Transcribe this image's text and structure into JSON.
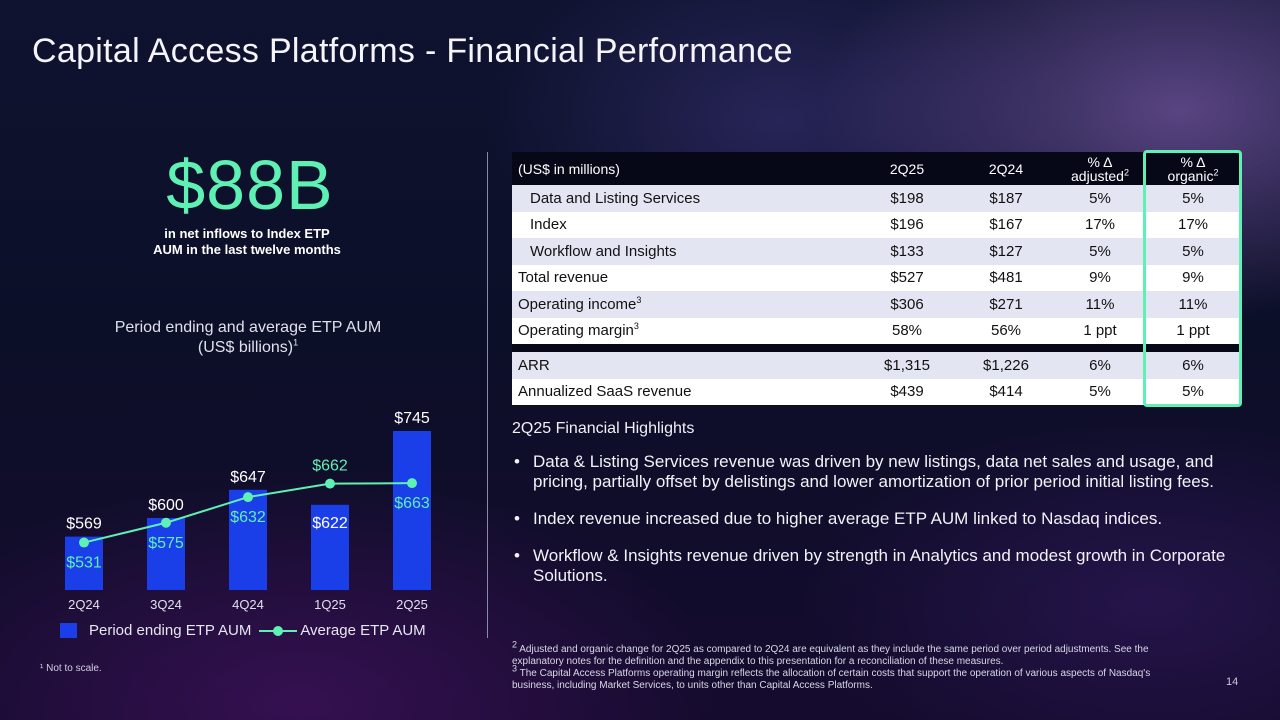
{
  "title": "Capital Access Platforms - Financial Performance",
  "headline": {
    "value": "$88B",
    "caption": "in net inflows to Index ETP AUM in the last twelve months"
  },
  "chart_title": {
    "line1": "Period ending and average ETP AUM",
    "line2": "(US$ billions)",
    "sup": "1"
  },
  "chart_data": {
    "type": "bar",
    "categories": [
      "2Q24",
      "3Q24",
      "4Q24",
      "1Q25",
      "2Q25"
    ],
    "series": [
      {
        "name": "Period ending ETP AUM",
        "type": "bar",
        "values": [
          569,
          600,
          647,
          622,
          745
        ],
        "labels": [
          "$569",
          "$600",
          "$647",
          "$622",
          "$745"
        ],
        "color": "#1a3ee8"
      },
      {
        "name": "Average ETP AUM",
        "type": "line",
        "values": [
          531,
          575,
          632,
          662,
          663
        ],
        "labels": [
          "$531",
          "$575",
          "$632",
          "$662",
          "$663"
        ],
        "color": "#5ff0b4"
      }
    ],
    "note": "Not to scale",
    "legend_position": "bottom"
  },
  "legend": {
    "bar": "Period ending ETP AUM",
    "line": "Average ETP AUM"
  },
  "footnote_left": "¹ Not to scale.",
  "table": {
    "header": {
      "label": "(US$ in millions)",
      "c1": "2Q25",
      "c2": "2Q24",
      "c3_line1": "% Δ",
      "c3_line2": "adjusted",
      "c3_sup": "2",
      "c4_line1": "% Δ",
      "c4_line2": "organic",
      "c4_sup": "2"
    },
    "rows": [
      {
        "label": "Data and Listing Services",
        "sup": "",
        "c1": "$198",
        "c2": "$187",
        "c3": "5%",
        "c4": "5%"
      },
      {
        "label": "Index",
        "sup": "",
        "c1": "$196",
        "c2": "$167",
        "c3": "17%",
        "c4": "17%"
      },
      {
        "label": "Workflow and Insights",
        "sup": "",
        "c1": "$133",
        "c2": "$127",
        "c3": "5%",
        "c4": "5%"
      },
      {
        "label": "Total revenue",
        "sup": "",
        "c1": "$527",
        "c2": "$481",
        "c3": "9%",
        "c4": "9%"
      },
      {
        "label": "Operating income",
        "sup": "3",
        "c1": "$306",
        "c2": "$271",
        "c3": "11%",
        "c4": "11%"
      },
      {
        "label": "Operating margin",
        "sup": "3",
        "c1": "58%",
        "c2": "56%",
        "c3": "1 ppt",
        "c4": "1 ppt"
      },
      {
        "label": "ARR",
        "sup": "",
        "c1": "$1,315",
        "c2": "$1,226",
        "c3": "6%",
        "c4": "6%"
      },
      {
        "label": "Annualized SaaS revenue",
        "sup": "",
        "c1": "$439",
        "c2": "$414",
        "c3": "5%",
        "c4": "5%"
      }
    ]
  },
  "highlights": {
    "title": "2Q25 Financial Highlights",
    "bullets": [
      "Data & Listing Services revenue was driven by new listings, data net sales and usage, and pricing, partially offset by delistings and lower amortization of prior period initial listing fees.",
      "Index revenue increased due to higher average ETP AUM linked to Nasdaq indices.",
      "Workflow & Insights revenue driven by strength in Analytics and modest growth in Corporate Solutions."
    ]
  },
  "footnotes": {
    "f2_sup": "2",
    "f2": "Adjusted and organic change for 2Q25 as compared to 2Q24 are equivalent as they include the same period over period adjustments. See the explanatory notes for the definition and the appendix to this presentation for a reconciliation of these measures.",
    "f3_sup": "3",
    "f3": "The Capital Access Platforms operating margin reflects the allocation of certain costs that support the operation of various aspects of Nasdaq's business, including Market Services, to units other than Capital Access Platforms."
  },
  "page_number": "14"
}
